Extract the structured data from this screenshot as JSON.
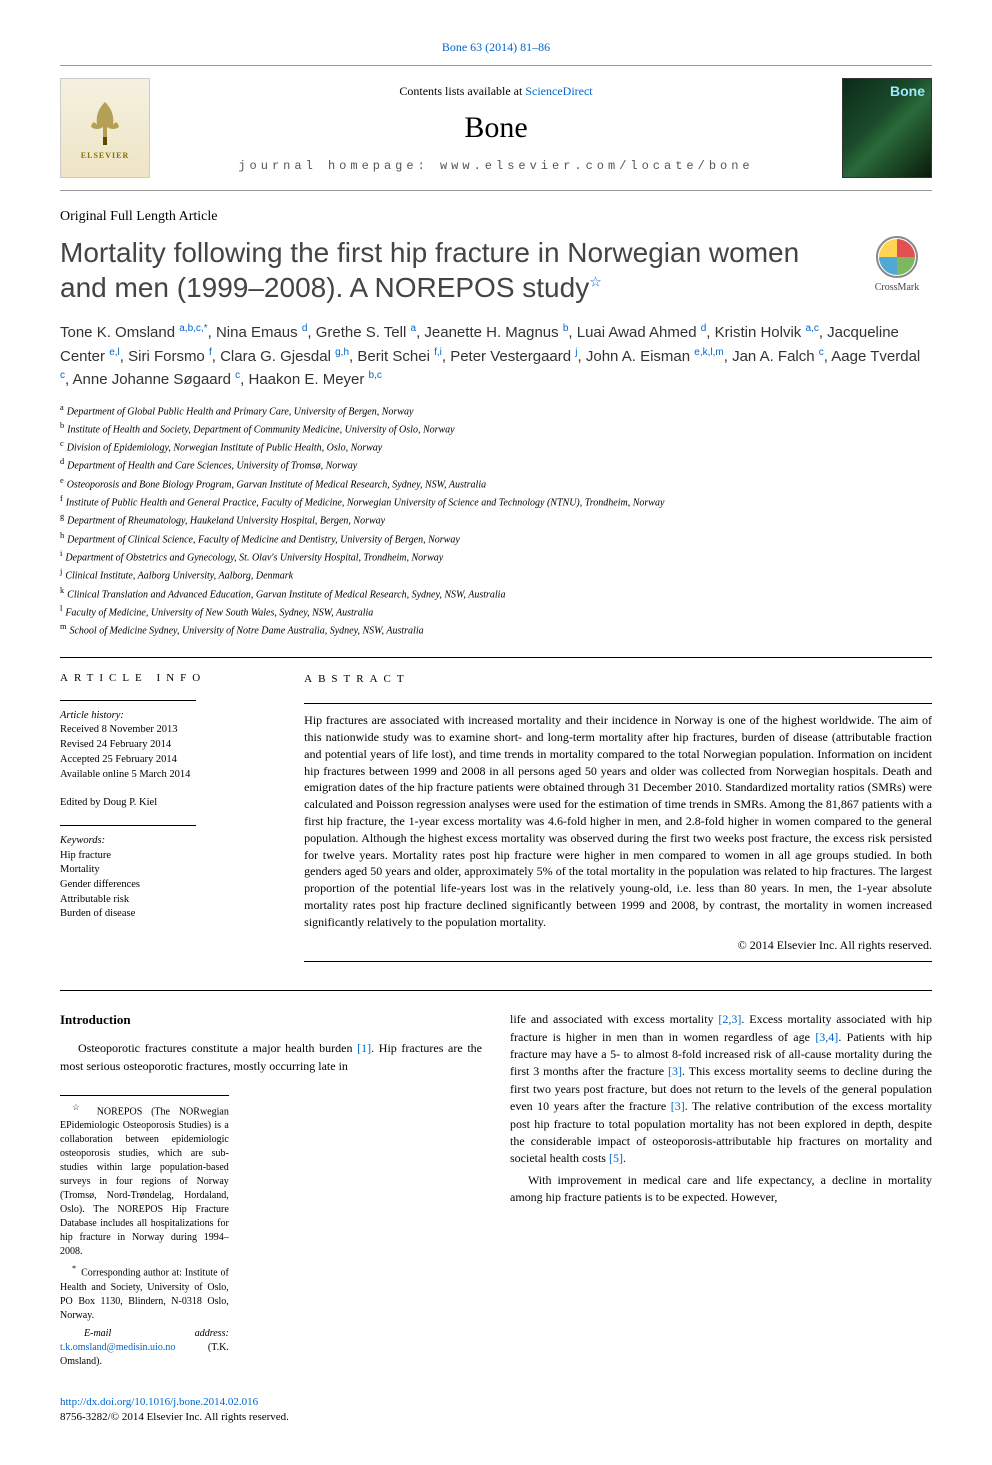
{
  "colors": {
    "link": "#0066cc",
    "text": "#000000",
    "muted": "#555555",
    "title_gray": "#444444",
    "rule": "#000000"
  },
  "citation_line": "Bone 63 (2014) 81–86",
  "header": {
    "contents_prefix": "Contents lists available at ",
    "contents_link": "ScienceDirect",
    "journal_name": "Bone",
    "homepage_prefix": "journal homepage: ",
    "homepage_url": "www.elsevier.com/locate/bone",
    "elsevier_caption": "ELSEVIER",
    "cover_label": "Bone"
  },
  "article_type": "Original Full Length Article",
  "title": "Mortality following the first hip fracture in Norwegian women and men (1999–2008). A NOREPOS study",
  "title_footnote_marker": "☆",
  "crossmark_label": "CrossMark",
  "authors": [
    {
      "name": "Tone K. Omsland",
      "sup": "a,b,c,*"
    },
    {
      "name": "Nina Emaus",
      "sup": "d"
    },
    {
      "name": "Grethe S. Tell",
      "sup": "a"
    },
    {
      "name": "Jeanette H. Magnus",
      "sup": "b"
    },
    {
      "name": "Luai Awad Ahmed",
      "sup": "d"
    },
    {
      "name": "Kristin Holvik",
      "sup": "a,c"
    },
    {
      "name": "Jacqueline Center",
      "sup": "e,l"
    },
    {
      "name": "Siri Forsmo",
      "sup": "f"
    },
    {
      "name": "Clara G. Gjesdal",
      "sup": "g,h"
    },
    {
      "name": "Berit Schei",
      "sup": "f,i"
    },
    {
      "name": "Peter Vestergaard",
      "sup": "j"
    },
    {
      "name": "John A. Eisman",
      "sup": "e,k,l,m"
    },
    {
      "name": "Jan A. Falch",
      "sup": "c"
    },
    {
      "name": "Aage Tverdal",
      "sup": "c"
    },
    {
      "name": "Anne Johanne Søgaard",
      "sup": "c"
    },
    {
      "name": "Haakon E. Meyer",
      "sup": "b,c"
    }
  ],
  "affiliations": [
    {
      "key": "a",
      "text": "Department of Global Public Health and Primary Care, University of Bergen, Norway"
    },
    {
      "key": "b",
      "text": "Institute of Health and Society, Department of Community Medicine, University of Oslo, Norway"
    },
    {
      "key": "c",
      "text": "Division of Epidemiology, Norwegian Institute of Public Health, Oslo, Norway"
    },
    {
      "key": "d",
      "text": "Department of Health and Care Sciences, University of Tromsø, Norway"
    },
    {
      "key": "e",
      "text": "Osteoporosis and Bone Biology Program, Garvan Institute of Medical Research, Sydney, NSW, Australia"
    },
    {
      "key": "f",
      "text": "Institute of Public Health and General Practice, Faculty of Medicine, Norwegian University of Science and Technology (NTNU), Trondheim, Norway"
    },
    {
      "key": "g",
      "text": "Department of Rheumatology, Haukeland University Hospital, Bergen, Norway"
    },
    {
      "key": "h",
      "text": "Department of Clinical Science, Faculty of Medicine and Dentistry, University of Bergen, Norway"
    },
    {
      "key": "i",
      "text": "Department of Obstetrics and Gynecology, St. Olav's University Hospital, Trondheim, Norway"
    },
    {
      "key": "j",
      "text": "Clinical Institute, Aalborg University, Aalborg, Denmark"
    },
    {
      "key": "k",
      "text": "Clinical Translation and Advanced Education, Garvan Institute of Medical Research, Sydney, NSW, Australia"
    },
    {
      "key": "l",
      "text": "Faculty of Medicine, University of New South Wales, Sydney, NSW, Australia"
    },
    {
      "key": "m",
      "text": "School of Medicine Sydney, University of Notre Dame Australia, Sydney, NSW, Australia"
    }
  ],
  "info": {
    "heading": "ARTICLE INFO",
    "history_label": "Article history:",
    "received": "Received 8 November 2013",
    "revised": "Revised 24 February 2014",
    "accepted": "Accepted 25 February 2014",
    "online": "Available online 5 March 2014",
    "edited_by": "Edited by Doug P. Kiel",
    "keywords_label": "Keywords:",
    "keywords": [
      "Hip fracture",
      "Mortality",
      "Gender differences",
      "Attributable risk",
      "Burden of disease"
    ]
  },
  "abstract": {
    "heading": "ABSTRACT",
    "text": "Hip fractures are associated with increased mortality and their incidence in Norway is one of the highest worldwide. The aim of this nationwide study was to examine short- and long-term mortality after hip fractures, burden of disease (attributable fraction and potential years of life lost), and time trends in mortality compared to the total Norwegian population. Information on incident hip fractures between 1999 and 2008 in all persons aged 50 years and older was collected from Norwegian hospitals. Death and emigration dates of the hip fracture patients were obtained through 31 December 2010. Standardized mortality ratios (SMRs) were calculated and Poisson regression analyses were used for the estimation of time trends in SMRs. Among the 81,867 patients with a first hip fracture, the 1-year excess mortality was 4.6-fold higher in men, and 2.8-fold higher in women compared to the general population. Although the highest excess mortality was observed during the first two weeks post fracture, the excess risk persisted for twelve years. Mortality rates post hip fracture were higher in men compared to women in all age groups studied. In both genders aged 50 years and older, approximately 5% of the total mortality in the population was related to hip fractures. The largest proportion of the potential life-years lost was in the relatively young-old, i.e. less than 80 years. In men, the 1-year absolute mortality rates post hip fracture declined significantly between 1999 and 2008, by contrast, the mortality in women increased significantly relatively to the population mortality.",
    "copyright": "© 2014 Elsevier Inc. All rights reserved."
  },
  "intro": {
    "heading": "Introduction",
    "p1_pre": "Osteoporotic fractures constitute a major health burden ",
    "ref1": "[1]",
    "p1_post": ". Hip fractures are the most serious osteoporotic fractures, mostly occurring late in",
    "p2_parts": [
      "life and associated with excess mortality ",
      "[2,3]",
      ". Excess mortality associated with hip fracture is higher in men than in women regardless of age ",
      "[3,4]",
      ". Patients with hip fracture may have a 5- to almost 8-fold increased risk of all-cause mortality during the first 3 months after the fracture ",
      "[3]",
      ". This excess mortality seems to decline during the first two years post fracture, but does not return to the levels of the general population even 10 years after the fracture ",
      "[3]",
      ". The relative contribution of the excess mortality post hip fracture to total population mortality has not been explored in depth, despite the considerable impact of osteoporosis-attributable hip fractures on mortality and societal health costs ",
      "[5]",
      "."
    ],
    "p3": "With improvement in medical care and life expectancy, a decline in mortality among hip fracture patients is to be expected. However,"
  },
  "footnotes": {
    "star": "NOREPOS (The NORwegian EPidemiologic Osteoporosis Studies) is a collaboration between epidemiologic osteoporosis studies, which are sub-studies within large population-based surveys in four regions of Norway (Tromsø, Nord-Trøndelag, Hordaland, Oslo). The NOREPOS Hip Fracture Database includes all hospitalizations for hip fracture in Norway during 1994–2008.",
    "corresponding": "Corresponding author at: Institute of Health and Society, University of Oslo, PO Box 1130, Blindern, N-0318 Oslo, Norway.",
    "email_label": "E-mail address:",
    "email": "t.k.omsland@medisin.uio.no",
    "email_suffix": " (T.K. Omsland)."
  },
  "doi": {
    "url": "http://dx.doi.org/10.1016/j.bone.2014.02.016",
    "issn_line": "8756-3282/© 2014 Elsevier Inc. All rights reserved."
  }
}
